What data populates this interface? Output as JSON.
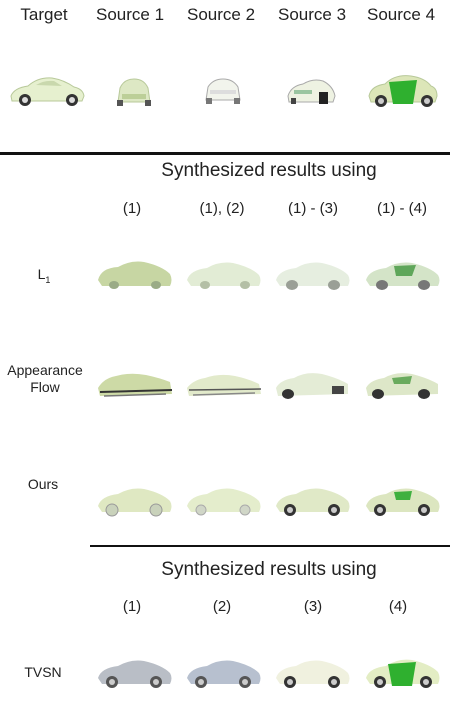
{
  "header": {
    "labels": [
      "Target",
      "Source 1",
      "Source 2",
      "Source 3",
      "Source 4"
    ]
  },
  "section1": {
    "title": "Synthesized results using",
    "columns": [
      "(1)",
      "(1), (2)",
      "(1) - (3)",
      "(1) - (4)"
    ],
    "rows": [
      {
        "label": "L",
        "subscript": "1"
      },
      {
        "label_line1": "Appearance",
        "label_line2": "Flow"
      },
      {
        "label": "Ours"
      }
    ]
  },
  "section2": {
    "title": "Synthesized results using",
    "columns": [
      "(1)",
      "(2)",
      "(3)",
      "(4)"
    ],
    "row_label": "TVSN"
  },
  "colors": {
    "car_body": "#e6f0cf",
    "car_shade": "#bccf98",
    "car_green": "#2fb02f",
    "rule": "#111111"
  }
}
